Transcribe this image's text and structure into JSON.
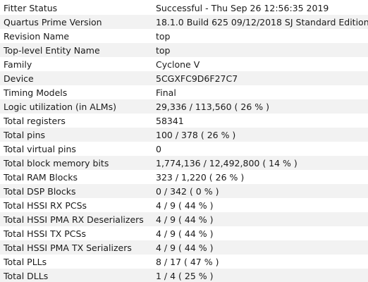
{
  "summary": {
    "rows": [
      {
        "key": "Fitter Status",
        "value": "Successful - Thu Sep 26 12:56:35 2019"
      },
      {
        "key": "Quartus Prime Version",
        "value": "18.1.0 Build 625 09/12/2018 SJ Standard Edition"
      },
      {
        "key": "Revision Name",
        "value": "top"
      },
      {
        "key": "Top-level Entity Name",
        "value": "top"
      },
      {
        "key": "Family",
        "value": "Cyclone V"
      },
      {
        "key": "Device",
        "value": "5CGXFC9D6F27C7"
      },
      {
        "key": "Timing Models",
        "value": "Final"
      },
      {
        "key": "Logic utilization (in ALMs)",
        "value": "29,336 / 113,560 ( 26 % )"
      },
      {
        "key": "Total registers",
        "value": "58341"
      },
      {
        "key": "Total pins",
        "value": "100 / 378 ( 26 % )"
      },
      {
        "key": "Total virtual pins",
        "value": "0"
      },
      {
        "key": "Total block memory bits",
        "value": "1,774,136 / 12,492,800 ( 14 % )"
      },
      {
        "key": "Total RAM Blocks",
        "value": "323 / 1,220 ( 26 % )"
      },
      {
        "key": "Total DSP Blocks",
        "value": "0 / 342 ( 0 % )"
      },
      {
        "key": "Total HSSI RX PCSs",
        "value": "4 / 9 ( 44 % )"
      },
      {
        "key": "Total HSSI PMA RX Deserializers",
        "value": "4 / 9 ( 44 % )"
      },
      {
        "key": "Total HSSI TX PCSs",
        "value": "4 / 9 ( 44 % )"
      },
      {
        "key": "Total HSSI PMA TX Serializers",
        "value": "4 / 9 ( 44 % )"
      },
      {
        "key": "Total PLLs",
        "value": "8 / 17 ( 47 % )"
      },
      {
        "key": "Total DLLs",
        "value": "1 / 4 ( 25 % )"
      }
    ]
  }
}
